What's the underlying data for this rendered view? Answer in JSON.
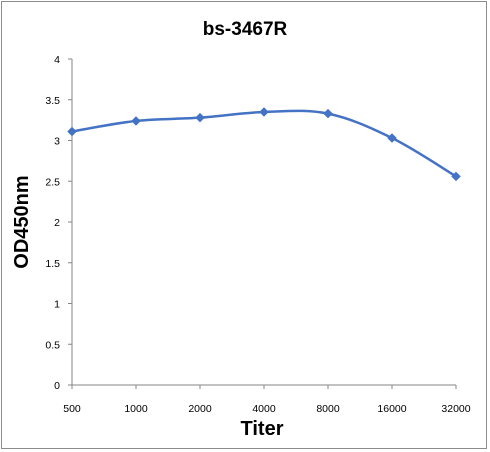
{
  "chart_data": {
    "type": "line",
    "title": "bs-3467R",
    "xlabel": "Titer",
    "ylabel": "OD450nm",
    "categories": [
      "500",
      "1000",
      "2000",
      "4000",
      "8000",
      "16000",
      "32000"
    ],
    "series": [
      {
        "values": [
          3.11,
          3.24,
          3.28,
          3.35,
          3.33,
          3.03,
          2.56
        ],
        "color": "#4472C4"
      }
    ],
    "ylim": [
      0,
      4
    ],
    "yticks": [
      0,
      0.5,
      1,
      1.5,
      2,
      2.5,
      3,
      3.5,
      4
    ],
    "ytick_labels": [
      "0",
      "0.5",
      "1",
      "1.5",
      "2",
      "2.5",
      "3",
      "3.5",
      "4"
    ],
    "grid": false,
    "legend": "none",
    "marker": "diamond",
    "smooth": true
  }
}
